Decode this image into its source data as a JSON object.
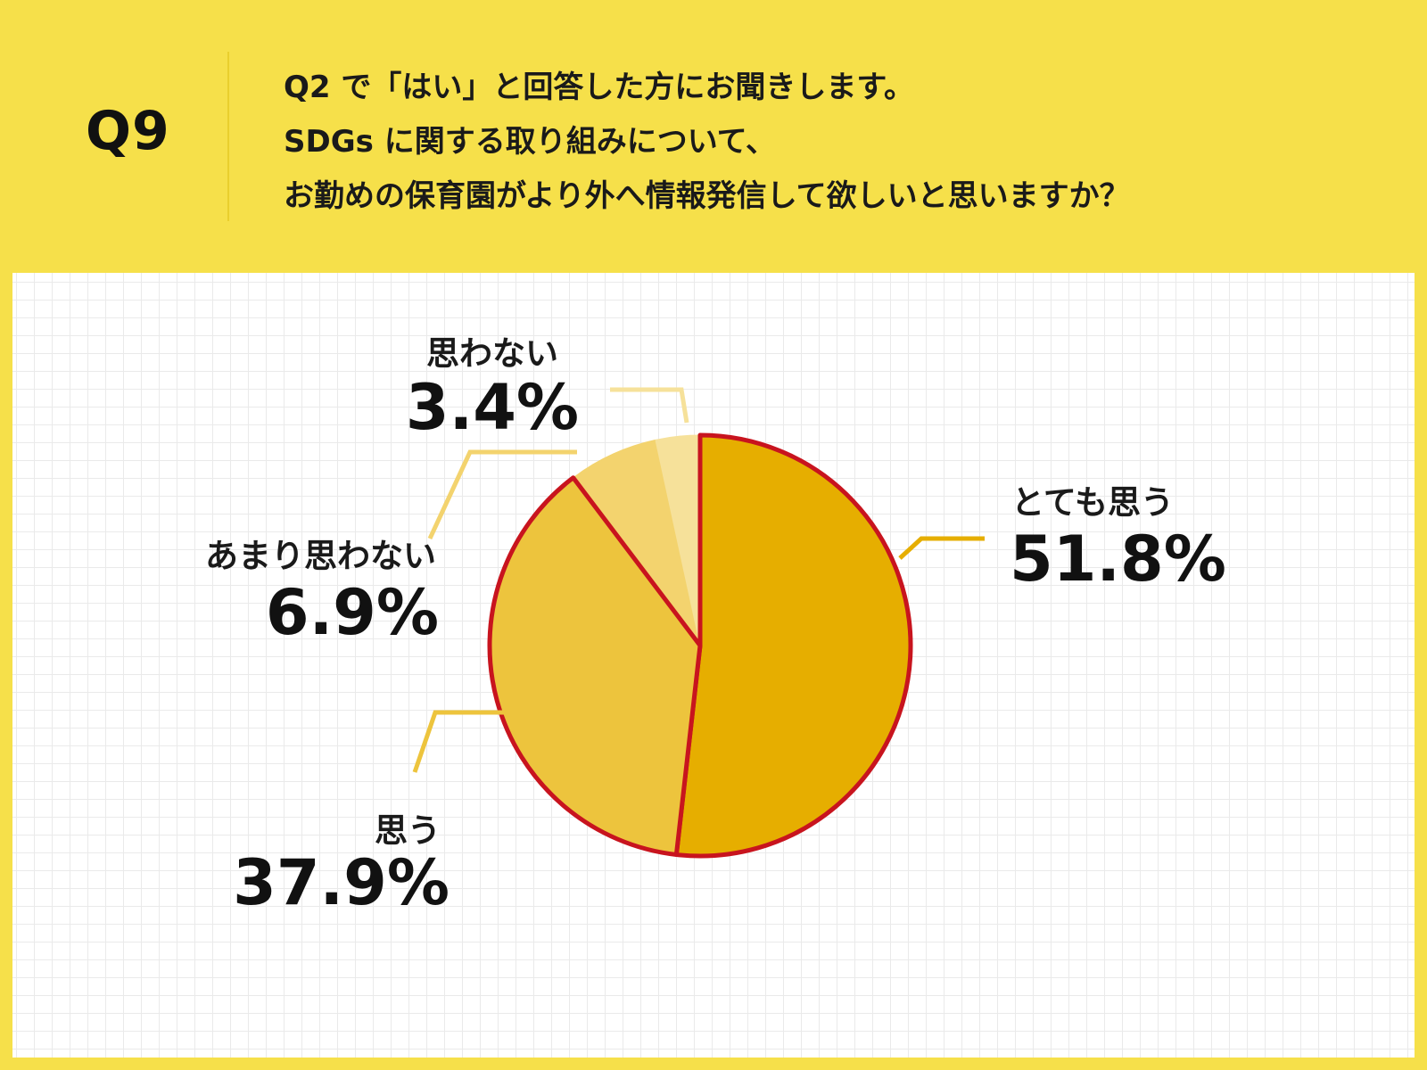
{
  "question": {
    "number": "Q9",
    "lines": [
      "Q2 で「はい」と回答した方にお聞きします。",
      "SDGs に関する取り組みについて、",
      "お勤めの保育園がより外へ情報発信して欲しいと思いますか？"
    ]
  },
  "colors": {
    "background": "#f6e04a",
    "highlight_outline": "#c8141e",
    "slices": [
      "#e6ae00",
      "#edc43d",
      "#f3d36e",
      "#f6e19a"
    ],
    "leaders": [
      "#e6ae00",
      "#edc43d",
      "#f3d36e",
      "#f6e19a"
    ]
  },
  "chart_data": {
    "type": "pie",
    "start": "12 o'clock",
    "direction": "clockwise",
    "highlighted_slices": [
      "とても思う",
      "思う"
    ],
    "slices": [
      {
        "label": "とても思う",
        "value": 51.8,
        "value_label": "51.8%"
      },
      {
        "label": "思う",
        "value": 37.9,
        "value_label": "37.9%"
      },
      {
        "label": "あまり思わない",
        "value": 6.9,
        "value_label": "6.9%"
      },
      {
        "label": "思わない",
        "value": 3.4,
        "value_label": "3.4%"
      }
    ]
  }
}
